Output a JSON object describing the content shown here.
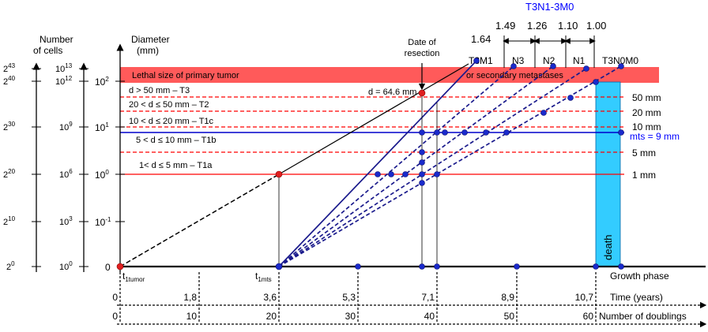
{
  "axes": {
    "cells_label": [
      "Number",
      "of cells"
    ],
    "cells_ticks": [
      {
        "base": "2",
        "exp": "43"
      },
      {
        "base": "2",
        "exp": "40"
      },
      {
        "base": "2",
        "exp": "30"
      },
      {
        "base": "2",
        "exp": "20"
      },
      {
        "base": "2",
        "exp": "10"
      },
      {
        "base": "2",
        "exp": "0"
      }
    ],
    "cells10_ticks": [
      {
        "base": "10",
        "exp": "13"
      },
      {
        "base": "10",
        "exp": "12"
      },
      {
        "base": "10",
        "exp": "9"
      },
      {
        "base": "10",
        "exp": "6"
      },
      {
        "base": "10",
        "exp": "3"
      },
      {
        "base": "10",
        "exp": "0"
      }
    ],
    "diameter_label": [
      "Diameter",
      "(mm)"
    ],
    "diameter_ticks": [
      {
        "base": "10",
        "exp": "2"
      },
      {
        "base": "10",
        "exp": "1"
      },
      {
        "base": "10",
        "exp": "0"
      },
      {
        "base": "10",
        "exp": "-1"
      },
      {
        "base": "0",
        "exp": ""
      }
    ]
  },
  "bands": {
    "lethal": "Lethal size of primary tumor",
    "metastases": "or secondary metastases",
    "categories": [
      "d > 50 mm – T3",
      "20 < d ≤ 50 mm – T2",
      "10 < d ≤ 20 mm – T1c",
      "5 < d ≤ 10 mm – T1b",
      "1< d ≤ 5 mm   – T1a"
    ],
    "right_labels": [
      "50 mm",
      "20 mm",
      "10 mm",
      "5 mm",
      "1 mm"
    ],
    "mts": "mts = 9 mm",
    "d_resection": "d = 64.6 mm"
  },
  "annotations": {
    "date_resection": [
      "Date of",
      "resection"
    ],
    "stage_top": "T3N1-3M0",
    "stage_values": [
      "1.64",
      "1.49",
      "1.26",
      "1.10",
      "1.00"
    ],
    "stages": [
      "T3M1",
      "N3",
      "N2",
      "N1",
      "T3N0M0"
    ],
    "death": "death",
    "t1tumor": {
      "main": "t",
      "sub": "1tumor"
    },
    "t1mts": {
      "main": "t",
      "sub": "1mts"
    }
  },
  "bottom_axes": {
    "growth_phase": "Growth phase",
    "time_label": "Time (years)",
    "time_ticks": [
      "0",
      "1,8",
      "3,6",
      "5,3",
      "7,1",
      "8,9",
      "10,7"
    ],
    "doublings_label": "Number of doublings",
    "doublings_ticks": [
      "0",
      "10",
      "20",
      "30",
      "40",
      "50",
      "60"
    ]
  },
  "colors": {
    "lethal_band": "#ff5a5a",
    "red_line": "#ff0000",
    "blue_line": "#0000cc",
    "navy": "#1a1a8c",
    "death_bar": "#33ccff",
    "blue_text": "#0000ff",
    "point_blue": "#1a2acc",
    "point_red": "#e02020"
  }
}
